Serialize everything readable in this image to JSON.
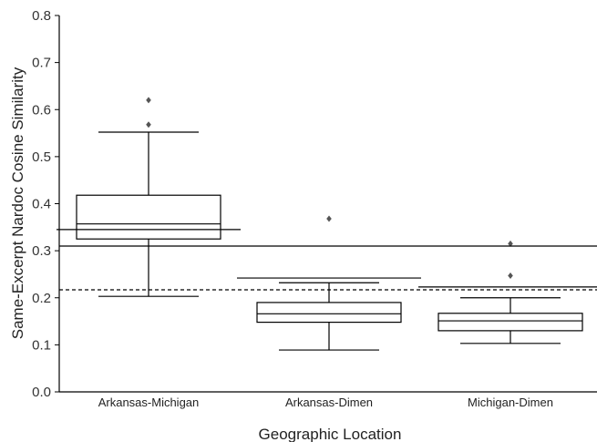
{
  "chart_data": {
    "type": "box",
    "title": "",
    "xlabel": "Geographic Location",
    "ylabel": "Same-Excerpt Nardoc Cosine Similarity",
    "ylim": [
      0.0,
      0.8
    ],
    "yticks": [
      "0.0",
      "0.1",
      "0.2",
      "0.3",
      "0.4",
      "0.5",
      "0.6",
      "0.7",
      "0.8"
    ],
    "grid": false,
    "categories": [
      "Arkansas-Michigan",
      "Arkansas-Dimen",
      "Michigan-Dimen"
    ],
    "boxes": [
      {
        "category": "Arkansas-Michigan",
        "whisker_low": 0.203,
        "q1": 0.325,
        "median": 0.357,
        "q3": 0.418,
        "whisker_high": 0.552,
        "outliers": [
          0.568,
          0.62
        ],
        "reference": 0.345
      },
      {
        "category": "Arkansas-Dimen",
        "whisker_low": 0.089,
        "q1": 0.148,
        "median": 0.166,
        "q3": 0.19,
        "whisker_high": 0.232,
        "outliers": [
          0.368
        ],
        "reference": 0.242
      },
      {
        "category": "Michigan-Dimen",
        "whisker_low": 0.103,
        "q1": 0.13,
        "median": 0.151,
        "q3": 0.167,
        "whisker_high": 0.2,
        "outliers": [
          0.247,
          0.315
        ],
        "reference": 0.223
      }
    ],
    "reference_lines": [
      {
        "style": "solid",
        "value": 0.31
      },
      {
        "style": "dashed",
        "value": 0.217
      }
    ],
    "colors": {
      "box_edge": "#000000",
      "outlier": "#555555",
      "axis": "#000000"
    }
  }
}
